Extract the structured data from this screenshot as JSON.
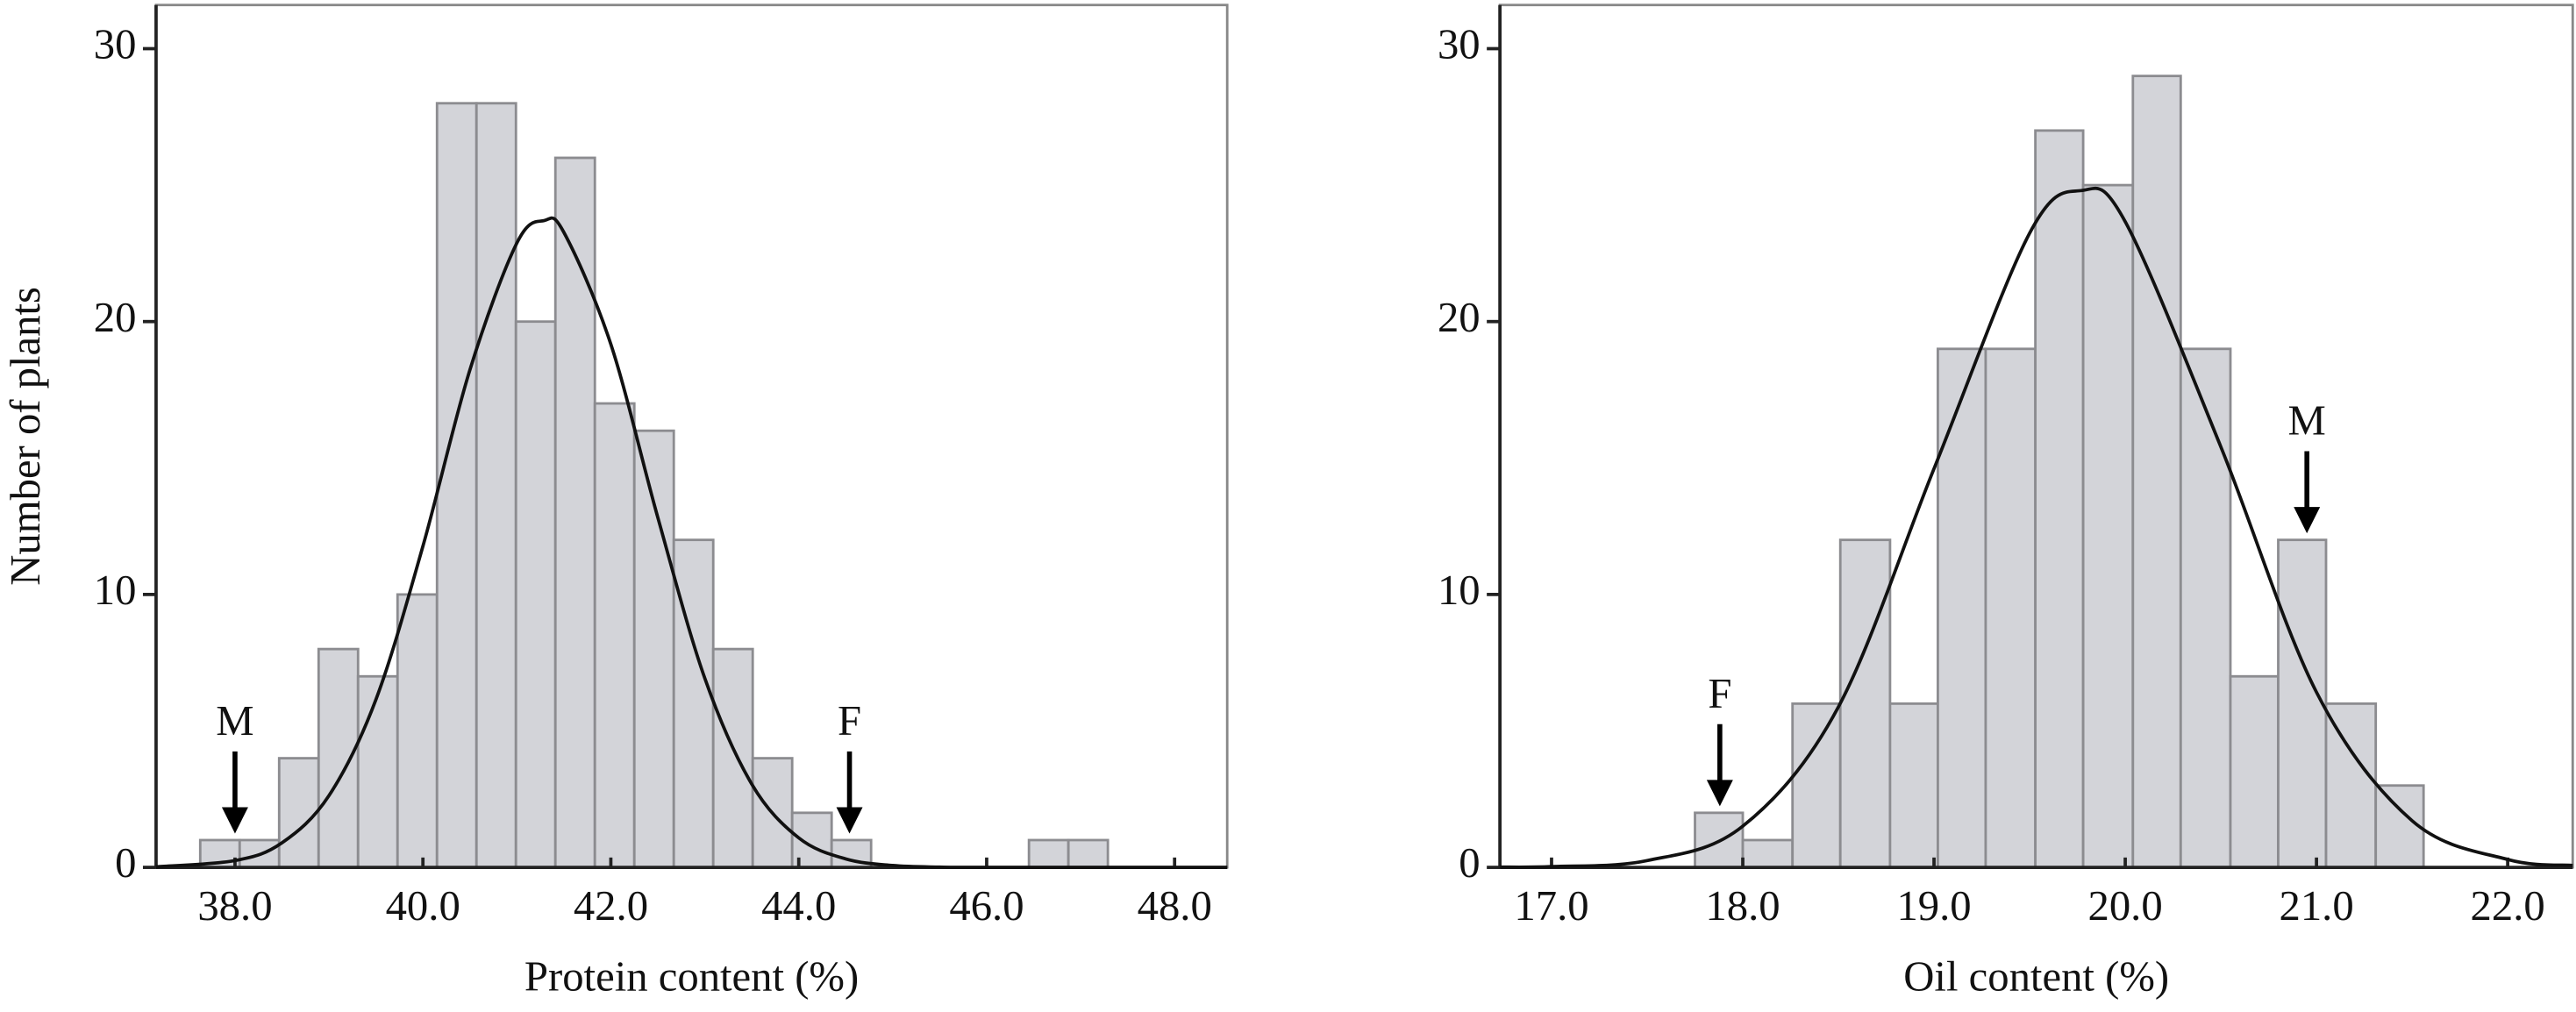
{
  "chart_data": [
    {
      "type": "histogram",
      "x_label": "Protein content (%)",
      "y_label": "Number of plants",
      "xlim": [
        37.16,
        48.56
      ],
      "ylim": [
        0,
        31.6
      ],
      "xticks": [
        {
          "value": 38,
          "label": "38.0"
        },
        {
          "value": 40,
          "label": "40.0"
        },
        {
          "value": 42,
          "label": "42.0"
        },
        {
          "value": 44,
          "label": "44.0"
        },
        {
          "value": 46,
          "label": "46.0"
        },
        {
          "value": 48,
          "label": "48.0"
        }
      ],
      "yticks": [
        0,
        10,
        20,
        30
      ],
      "bins": [
        37.63,
        38.05,
        38.47,
        38.89,
        39.31,
        39.73,
        40.15,
        40.57,
        40.99,
        41.41,
        41.83,
        42.25,
        42.67,
        43.09,
        43.51,
        43.93,
        44.35,
        44.77,
        45.19,
        45.61,
        46.03,
        46.45,
        46.87,
        47.29
      ],
      "values": [
        1,
        1,
        4,
        8,
        7,
        10,
        28,
        28,
        20,
        26,
        17,
        16,
        12,
        8,
        4,
        2,
        1,
        0,
        0,
        0,
        0,
        1,
        1
      ],
      "color": "#d3d4d9",
      "curve": {
        "x": [
          37.16,
          38.0,
          38.5,
          39.0,
          39.5,
          40.0,
          40.5,
          41.0,
          41.29,
          41.5,
          42.0,
          42.5,
          43.0,
          43.5,
          44.0,
          44.5,
          45.0,
          45.5,
          46.0,
          48.56
        ],
        "values": [
          0.02,
          0.25,
          0.9,
          2.63,
          6.15,
          11.77,
          18.23,
          22.88,
          23.7,
          23.27,
          19.17,
          12.82,
          6.93,
          3.05,
          1.08,
          0.31,
          0.07,
          0.01,
          0,
          0
        ]
      },
      "annotations": [
        {
          "text": "M",
          "x": 38.0
        },
        {
          "text": "F",
          "x": 44.54
        }
      ]
    },
    {
      "type": "histogram",
      "x_label": "Oil content (%)",
      "xlim": [
        16.73,
        22.34
      ],
      "ylim": [
        0,
        31.6
      ],
      "xticks": [
        {
          "value": 17,
          "label": "17.0"
        },
        {
          "value": 18,
          "label": "18.0"
        },
        {
          "value": 19,
          "label": "19.0"
        },
        {
          "value": 20,
          "label": "20.0"
        },
        {
          "value": 21,
          "label": "21.0"
        },
        {
          "value": 22,
          "label": "22.0"
        }
      ],
      "yticks": [
        0,
        10,
        20,
        30
      ],
      "bins": [
        17.75,
        18.0,
        18.26,
        18.51,
        18.77,
        19.02,
        19.27,
        19.53,
        19.78,
        20.04,
        20.29,
        20.55,
        20.8,
        21.05,
        21.31,
        21.56
      ],
      "values": [
        2,
        1,
        6,
        12,
        6,
        19,
        19,
        27,
        25,
        29,
        19,
        7,
        12,
        6,
        3
      ],
      "color": "#d3d4d9",
      "curve": {
        "x": [
          16.73,
          17.0,
          17.5,
          18.0,
          18.5,
          19.0,
          19.5,
          19.77,
          20.0,
          20.5,
          21.0,
          21.5,
          22.0,
          22.34
        ],
        "values": [
          0.01,
          0.03,
          0.25,
          1.51,
          5.88,
          14.61,
          23.24,
          24.8,
          23.66,
          15.41,
          6.42,
          1.71,
          0.29,
          0.07
        ]
      },
      "annotations": [
        {
          "text": "F",
          "x": 17.88
        },
        {
          "text": "M",
          "x": 20.95
        }
      ]
    }
  ]
}
